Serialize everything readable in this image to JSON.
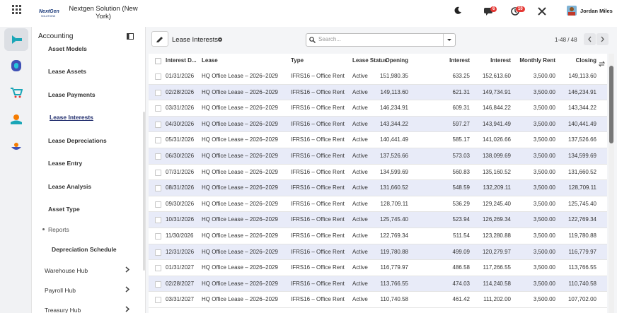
{
  "header": {
    "logo": "NextGen",
    "logo_sub": "SOLUTIONS",
    "company": "Nextgen Solution (New York)",
    "chat_badge": "6",
    "activity_badge": "10",
    "user": "Jordan Miles"
  },
  "sidebar": {
    "title": "Accounting",
    "items": [
      {
        "label": "Asset Models"
      },
      {
        "label": "Lease Assets"
      },
      {
        "label": "Lease Payments"
      },
      {
        "label": "Lease Interests"
      },
      {
        "label": "Lease Depreciations"
      },
      {
        "label": "Lease Entry"
      },
      {
        "label": "Lease Analysis"
      },
      {
        "label": "Asset Type"
      },
      {
        "label": "Reports"
      },
      {
        "label": "Depreciation Schedule"
      },
      {
        "label": "Warehouse Hub"
      },
      {
        "label": "Payroll Hub"
      },
      {
        "label": "Treasury Hub"
      }
    ]
  },
  "toolbar": {
    "title": "Lease Interests",
    "search_placeholder": "Search...",
    "pager": "1-48 / 48"
  },
  "table": {
    "columns": [
      "Interest D...",
      "Lease",
      "Type",
      "Lease Status",
      "Opening",
      "Interest",
      "Interest",
      "Monthly Rent",
      "Closing"
    ],
    "rows": [
      [
        "01/31/2026",
        "HQ Office Lease – 2026–2029",
        "IFRS16 – Office Rent",
        "Active",
        "151,980.35",
        "633.25",
        "152,613.60",
        "3,500.00",
        "149,113.60"
      ],
      [
        "02/28/2026",
        "HQ Office Lease – 2026–2029",
        "IFRS16 – Office Rent",
        "Active",
        "149,113.60",
        "621.31",
        "149,734.91",
        "3,500.00",
        "146,234.91"
      ],
      [
        "03/31/2026",
        "HQ Office Lease – 2026–2029",
        "IFRS16 – Office Rent",
        "Active",
        "146,234.91",
        "609.31",
        "146,844.22",
        "3,500.00",
        "143,344.22"
      ],
      [
        "04/30/2026",
        "HQ Office Lease – 2026–2029",
        "IFRS16 – Office Rent",
        "Active",
        "143,344.22",
        "597.27",
        "143,941.49",
        "3,500.00",
        "140,441.49"
      ],
      [
        "05/31/2026",
        "HQ Office Lease – 2026–2029",
        "IFRS16 – Office Rent",
        "Active",
        "140,441.49",
        "585.17",
        "141,026.66",
        "3,500.00",
        "137,526.66"
      ],
      [
        "06/30/2026",
        "HQ Office Lease – 2026–2029",
        "IFRS16 – Office Rent",
        "Active",
        "137,526.66",
        "573.03",
        "138,099.69",
        "3,500.00",
        "134,599.69"
      ],
      [
        "07/31/2026",
        "HQ Office Lease – 2026–2029",
        "IFRS16 – Office Rent",
        "Active",
        "134,599.69",
        "560.83",
        "135,160.52",
        "3,500.00",
        "131,660.52"
      ],
      [
        "08/31/2026",
        "HQ Office Lease – 2026–2029",
        "IFRS16 – Office Rent",
        "Active",
        "131,660.52",
        "548.59",
        "132,209.11",
        "3,500.00",
        "128,709.11"
      ],
      [
        "09/30/2026",
        "HQ Office Lease – 2026–2029",
        "IFRS16 – Office Rent",
        "Active",
        "128,709.11",
        "536.29",
        "129,245.40",
        "3,500.00",
        "125,745.40"
      ],
      [
        "10/31/2026",
        "HQ Office Lease – 2026–2029",
        "IFRS16 – Office Rent",
        "Active",
        "125,745.40",
        "523.94",
        "126,269.34",
        "3,500.00",
        "122,769.34"
      ],
      [
        "11/30/2026",
        "HQ Office Lease – 2026–2029",
        "IFRS16 – Office Rent",
        "Active",
        "122,769.34",
        "511.54",
        "123,280.88",
        "3,500.00",
        "119,780.88"
      ],
      [
        "12/31/2026",
        "HQ Office Lease – 2026–2029",
        "IFRS16 – Office Rent",
        "Active",
        "119,780.88",
        "499.09",
        "120,279.97",
        "3,500.00",
        "116,779.97"
      ],
      [
        "01/31/2027",
        "HQ Office Lease – 2026–2029",
        "IFRS16 – Office Rent",
        "Active",
        "116,779.97",
        "486.58",
        "117,266.55",
        "3,500.00",
        "113,766.55"
      ],
      [
        "02/28/2027",
        "HQ Office Lease – 2026–2029",
        "IFRS16 – Office Rent",
        "Active",
        "113,766.55",
        "474.03",
        "114,240.58",
        "3,500.00",
        "110,740.58"
      ],
      [
        "03/31/2027",
        "HQ Office Lease – 2026–2029",
        "IFRS16 – Office Rent",
        "Active",
        "110,740.58",
        "461.42",
        "111,202.00",
        "3,500.00",
        "107,702.00"
      ]
    ]
  }
}
